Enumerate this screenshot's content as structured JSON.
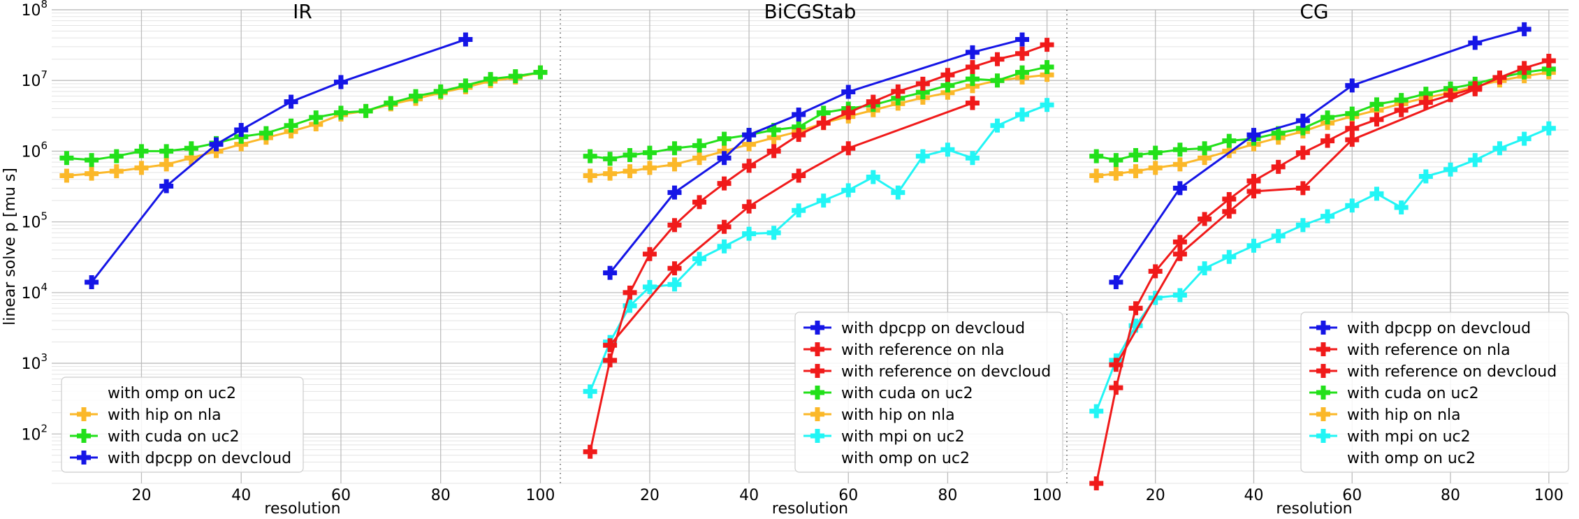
{
  "chart_data": {
    "type": "line",
    "y_log_scale": true,
    "grid": true,
    "ylim": [
      20,
      100000000
    ],
    "xlim": [
      2,
      104
    ],
    "ylabel": "linear solve p [mu s]",
    "xlabel": "resolution",
    "x_ticks": [
      20,
      40,
      60,
      80,
      100
    ],
    "y_ticks": [
      {
        "value": 100,
        "base": "10",
        "exp": "2"
      },
      {
        "value": 1000,
        "base": "10",
        "exp": "3"
      },
      {
        "value": 10000,
        "base": "10",
        "exp": "4"
      },
      {
        "value": 100000,
        "base": "10",
        "exp": "5"
      },
      {
        "value": 1000000,
        "base": "10",
        "exp": "6"
      },
      {
        "value": 10000000,
        "base": "10",
        "exp": "7"
      },
      {
        "value": 100000000,
        "base": "10",
        "exp": "8"
      }
    ],
    "colors": {
      "dpcpp": "#1515e6",
      "reference": "#f01a1a",
      "cuda": "#22e01a",
      "hip": "#fbb829",
      "mpi": "#22f5f5",
      "grid": "#c8c8c8"
    },
    "panels": [
      {
        "title": "IR",
        "legend_position": "lower-left",
        "legend": [
          {
            "label": "with omp on uc2",
            "color": null
          },
          {
            "label": "with hip on nla",
            "color": "#fbb829"
          },
          {
            "label": "with cuda on uc2",
            "color": "#22e01a"
          },
          {
            "label": "with dpcpp on devcloud",
            "color": "#1515e6"
          }
        ],
        "series": [
          {
            "name": "with hip on nla",
            "color": "#fbb829",
            "x": [
              5,
              10,
              15,
              20,
              25,
              30,
              35,
              40,
              45,
              50,
              55,
              60,
              65,
              70,
              75,
              80,
              85,
              90,
              95,
              100
            ],
            "y": [
              450000,
              480000,
              520000,
              580000,
              650000,
              800000,
              1000000,
              1250000,
              1550000,
              1900000,
              2400000,
              3300000,
              3700000,
              4600000,
              5500000,
              6700000,
              8000000,
              9800000,
              11000000,
              13000000
            ]
          },
          {
            "name": "with cuda on uc2",
            "color": "#22e01a",
            "x": [
              5,
              10,
              15,
              20,
              25,
              30,
              35,
              40,
              45,
              50,
              55,
              60,
              65,
              70,
              75,
              80,
              85,
              90,
              95,
              100
            ],
            "y": [
              800000,
              750000,
              850000,
              1000000,
              1000000,
              1100000,
              1300000,
              1600000,
              1800000,
              2300000,
              3000000,
              3500000,
              3700000,
              4800000,
              6000000,
              7000000,
              8500000,
              10500000,
              11500000,
              13000000
            ]
          },
          {
            "name": "with dpcpp on devcloud",
            "color": "#1515e6",
            "x": [
              10,
              25,
              35,
              40,
              50,
              60,
              85
            ],
            "y": [
              14000,
              320000,
              1250000,
              2000000,
              5000000,
              9500000,
              38000000
            ]
          }
        ]
      },
      {
        "title": "BiCGStab",
        "legend_position": "lower-right",
        "legend": [
          {
            "label": "with dpcpp on devcloud",
            "color": "#1515e6"
          },
          {
            "label": "with reference on nla",
            "color": "#f01a1a"
          },
          {
            "label": "with reference on devcloud",
            "color": "#f01a1a"
          },
          {
            "label": "with cuda on uc2",
            "color": "#22e01a"
          },
          {
            "label": "with hip on nla",
            "color": "#fbb829"
          },
          {
            "label": "with mpi on uc2",
            "color": "#22f5f5"
          },
          {
            "label": "with omp on uc2",
            "color": null
          }
        ],
        "series": [
          {
            "name": "with hip on nla",
            "color": "#fbb829",
            "x": [
              8,
              12,
              16,
              20,
              25,
              30,
              35,
              40,
              45,
              50,
              55,
              60,
              65,
              70,
              75,
              80,
              85,
              90,
              95,
              100
            ],
            "y": [
              450000,
              480000,
              520000,
              580000,
              650000,
              800000,
              1000000,
              1250000,
              1550000,
              1900000,
              2500000,
              3100000,
              3800000,
              4700000,
              5700000,
              6700000,
              8300000,
              10000000,
              11000000,
              12000000
            ]
          },
          {
            "name": "with cuda on uc2",
            "color": "#22e01a",
            "x": [
              8,
              12,
              16,
              20,
              25,
              30,
              35,
              40,
              45,
              50,
              55,
              60,
              65,
              70,
              75,
              80,
              85,
              90,
              95,
              100
            ],
            "y": [
              850000,
              780000,
              880000,
              950000,
              1100000,
              1200000,
              1500000,
              1700000,
              2000000,
              2200000,
              3500000,
              4000000,
              4500000,
              5600000,
              6800000,
              8500000,
              10500000,
              10000000,
              13000000,
              15500000
            ]
          },
          {
            "name": "with mpi on uc2",
            "color": "#22f5f5",
            "x": [
              8,
              12,
              16,
              20,
              25,
              30,
              35,
              40,
              45,
              50,
              55,
              60,
              65,
              70,
              75,
              80,
              85,
              90,
              95,
              100
            ],
            "y": [
              400,
              2000,
              6500,
              12000,
              13000,
              30000,
              45000,
              68000,
              70000,
              145000,
              200000,
              280000,
              430000,
              260000,
              850000,
              1050000,
              800000,
              2300000,
              3300000,
              4500000
            ]
          },
          {
            "name": "with reference on nla",
            "color": "#f01a1a",
            "x": [
              8,
              12,
              16,
              20,
              25,
              30,
              35,
              40,
              45,
              50,
              55,
              60,
              65,
              70,
              75,
              80,
              85,
              90,
              95,
              100
            ],
            "y": [
              56,
              1100,
              10000,
              35000,
              90000,
              190000,
              350000,
              620000,
              1000000,
              1700000,
              2500000,
              3500000,
              5000000,
              7000000,
              9000000,
              12000000,
              15500000,
              20000000,
              24000000,
              32000000
            ]
          },
          {
            "name": "with reference on devcloud",
            "color": "#f01a1a",
            "x": [
              12,
              25,
              35,
              40,
              50,
              60,
              85
            ],
            "y": [
              1800,
              22000,
              85000,
              165000,
              450000,
              1100000,
              4800000
            ]
          },
          {
            "name": "with dpcpp on devcloud",
            "color": "#1515e6",
            "x": [
              12,
              25,
              35,
              40,
              50,
              60,
              85,
              95
            ],
            "y": [
              19000,
              260000,
              800000,
              1700000,
              3300000,
              6900000,
              25000000,
              38000000
            ]
          }
        ]
      },
      {
        "title": "CG",
        "legend_position": "lower-right",
        "legend": [
          {
            "label": "with dpcpp on devcloud",
            "color": "#1515e6"
          },
          {
            "label": "with reference on nla",
            "color": "#f01a1a"
          },
          {
            "label": "with reference on devcloud",
            "color": "#f01a1a"
          },
          {
            "label": "with cuda on uc2",
            "color": "#22e01a"
          },
          {
            "label": "with hip on nla",
            "color": "#fbb829"
          },
          {
            "label": "with mpi on uc2",
            "color": "#22f5f5"
          },
          {
            "label": "with omp on uc2",
            "color": null
          }
        ],
        "series": [
          {
            "name": "with hip on nla",
            "color": "#fbb829",
            "x": [
              8,
              12,
              16,
              20,
              25,
              30,
              35,
              40,
              45,
              50,
              55,
              60,
              65,
              70,
              75,
              80,
              85,
              90,
              95,
              100
            ],
            "y": [
              450000,
              480000,
              520000,
              580000,
              650000,
              800000,
              1000000,
              1250000,
              1550000,
              1900000,
              2500000,
              3100000,
              3800000,
              4700000,
              5700000,
              6700000,
              8200000,
              10000000,
              11500000,
              13000000
            ]
          },
          {
            "name": "with cuda on uc2",
            "color": "#22e01a",
            "x": [
              8,
              12,
              16,
              20,
              25,
              30,
              35,
              40,
              45,
              50,
              55,
              60,
              65,
              70,
              75,
              80,
              85,
              90,
              95,
              100
            ],
            "y": [
              850000,
              750000,
              880000,
              950000,
              1050000,
              1100000,
              1400000,
              1500000,
              1800000,
              2100000,
              3000000,
              3400000,
              4600000,
              5300000,
              6500000,
              7700000,
              9000000,
              11000000,
              13000000,
              14500000
            ]
          },
          {
            "name": "with mpi on uc2",
            "color": "#22f5f5",
            "x": [
              8,
              12,
              16,
              20,
              25,
              30,
              35,
              40,
              45,
              50,
              55,
              60,
              65,
              70,
              75,
              80,
              85,
              90,
              95,
              100
            ],
            "y": [
              210,
              1100,
              3400,
              8400,
              9200,
              22000,
              32000,
              46000,
              63000,
              90000,
              120000,
              170000,
              250000,
              160000,
              440000,
              550000,
              750000,
              1100000,
              1500000,
              2100000
            ]
          },
          {
            "name": "with reference on nla",
            "color": "#f01a1a",
            "x": [
              8,
              12,
              16,
              20,
              25,
              30,
              35,
              40,
              45,
              50,
              55,
              60,
              65,
              70,
              75,
              80,
              85,
              90,
              95,
              100
            ],
            "y": [
              20,
              450,
              6000,
              20000,
              52000,
              110000,
              210000,
              380000,
              600000,
              950000,
              1400000,
              2100000,
              2800000,
              3800000,
              4900000,
              6200000,
              7800000,
              11000000,
              15000000,
              19000000
            ]
          },
          {
            "name": "with reference on devcloud",
            "color": "#f01a1a",
            "x": [
              12,
              25,
              35,
              40,
              50,
              60,
              85
            ],
            "y": [
              950,
              35000,
              140000,
              270000,
              300000,
              1450000,
              7500000
            ]
          },
          {
            "name": "with dpcpp on devcloud",
            "color": "#1515e6",
            "x": [
              12,
              25,
              40,
              50,
              60,
              85,
              95
            ],
            "y": [
              14000,
              300000,
              1700000,
              2700000,
              8500000,
              34000000,
              53000000
            ]
          }
        ]
      }
    ]
  }
}
